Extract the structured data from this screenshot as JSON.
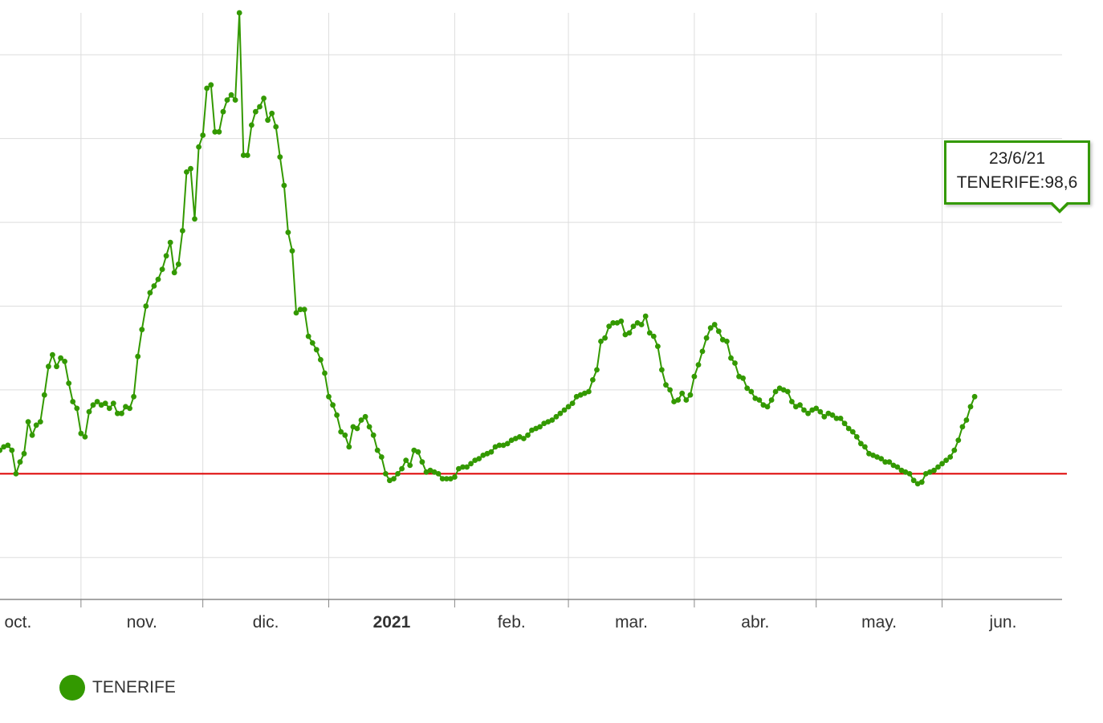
{
  "colors": {
    "series": "#339900",
    "threshold": "#dd0000",
    "grid": "#dddddd",
    "axis": "#888888"
  },
  "chart_data": {
    "type": "line",
    "title": "",
    "xlabel": "",
    "ylabel": "",
    "grid": true,
    "legend_placement": "bottom-left",
    "ylim": [
      -25,
      325
    ],
    "threshold": 50,
    "x_tick_labels": [
      {
        "date": "2020-10-01",
        "label": "oct.",
        "bold": false
      },
      {
        "date": "2020-11-01",
        "label": "nov.",
        "bold": false
      },
      {
        "date": "2020-12-01",
        "label": "dic.",
        "bold": false
      },
      {
        "date": "2021-01-01",
        "label": "2021",
        "bold": true
      },
      {
        "date": "2021-02-01",
        "label": "feb.",
        "bold": false
      },
      {
        "date": "2021-03-01",
        "label": "mar.",
        "bold": false
      },
      {
        "date": "2021-04-01",
        "label": "abr.",
        "bold": false
      },
      {
        "date": "2021-05-01",
        "label": "may.",
        "bold": false
      },
      {
        "date": "2021-06-01",
        "label": "jun.",
        "bold": false
      }
    ],
    "series": [
      {
        "name": "TENERIFE",
        "start_date": "2020-10-01",
        "values": [
          60,
          56,
          57,
          57,
          55,
          62,
          67,
          78,
          80,
          70,
          71,
          64,
          66,
          67,
          64,
          50,
          57,
          62,
          81,
          73,
          79,
          81,
          97,
          114,
          121,
          114,
          119,
          117,
          104,
          93,
          89,
          74,
          72,
          87,
          91,
          93,
          91,
          92,
          89,
          92,
          86,
          86,
          90,
          89,
          96,
          120,
          136,
          150,
          158,
          162,
          166,
          172,
          180,
          188,
          170,
          175,
          195,
          230,
          232,
          202,
          245,
          252,
          280,
          282,
          254,
          254,
          266,
          273,
          276,
          273,
          325,
          240,
          240,
          258,
          266,
          269,
          274,
          261,
          265,
          257,
          239,
          222,
          194,
          183,
          146,
          148,
          148,
          132,
          128,
          124,
          118,
          110,
          96,
          91,
          85,
          75,
          73,
          66,
          78,
          77,
          82,
          84,
          78,
          73,
          64,
          60,
          50,
          46,
          47,
          50,
          53,
          58,
          55,
          64,
          63,
          57,
          51,
          52,
          51,
          50,
          47,
          47,
          47,
          48,
          53,
          54,
          54,
          56,
          58,
          59,
          61,
          62,
          63,
          66,
          67,
          67,
          68,
          70,
          71,
          72,
          71,
          73,
          76,
          77,
          78,
          80,
          81,
          82,
          84,
          86,
          88,
          90,
          92,
          96,
          97,
          98,
          99,
          106,
          112,
          129,
          131,
          138,
          140,
          140,
          141,
          133,
          134,
          138,
          140,
          139,
          144,
          134,
          132,
          126,
          112,
          103,
          100,
          93,
          94,
          98,
          94,
          97,
          108,
          115,
          123,
          131,
          137,
          139,
          135,
          130,
          129,
          119,
          116,
          108,
          107,
          101,
          99,
          95,
          94,
          91,
          90,
          94,
          99,
          101,
          100,
          99,
          93,
          90,
          91,
          88,
          86,
          88,
          89,
          87,
          84,
          86,
          85,
          83,
          83,
          80,
          77,
          75,
          72,
          68,
          66,
          62,
          61,
          60,
          59,
          57,
          57,
          55,
          54,
          52,
          51,
          50,
          46,
          44,
          45,
          50,
          51,
          52,
          54,
          56,
          58,
          60,
          64,
          70,
          78,
          82,
          90,
          96
        ]
      }
    ]
  },
  "legend": {
    "label": "TENERIFE"
  },
  "tooltip": {
    "date": "23/6/21",
    "value_text": "TENERIFE:98,6"
  }
}
